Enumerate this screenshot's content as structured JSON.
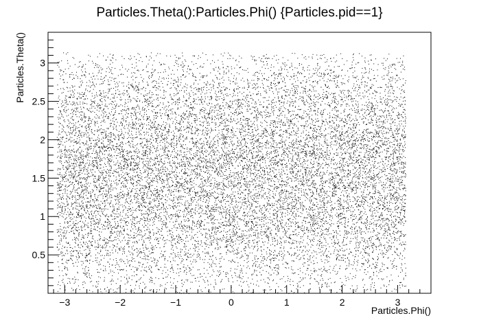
{
  "chart_data": {
    "type": "scatter",
    "title": "Particles.Theta():Particles.Phi() {Particles.pid==1}",
    "xlabel": "Particles.Phi()",
    "ylabel": "Particles.Theta()",
    "xlim": [
      -3.3,
      3.6
    ],
    "ylim": [
      0.0,
      3.4
    ],
    "x_ticks": [
      -3,
      -2,
      -1,
      0,
      1,
      2,
      3
    ],
    "x_tick_labels": [
      "−3",
      "−2",
      "−1",
      "0",
      "1",
      "2",
      "3"
    ],
    "y_ticks": [
      0.5,
      1,
      1.5,
      2,
      2.5,
      3
    ],
    "y_tick_labels": [
      "0.5",
      "1",
      "1.5",
      "2",
      "2.5",
      "3"
    ],
    "grid": false,
    "legend": false,
    "marker_color": "#000000",
    "distribution": {
      "x_range": [
        -3.1416,
        3.1416
      ],
      "y_range": [
        0.0,
        3.1416
      ],
      "density_peak_y": 1.5708
    }
  }
}
